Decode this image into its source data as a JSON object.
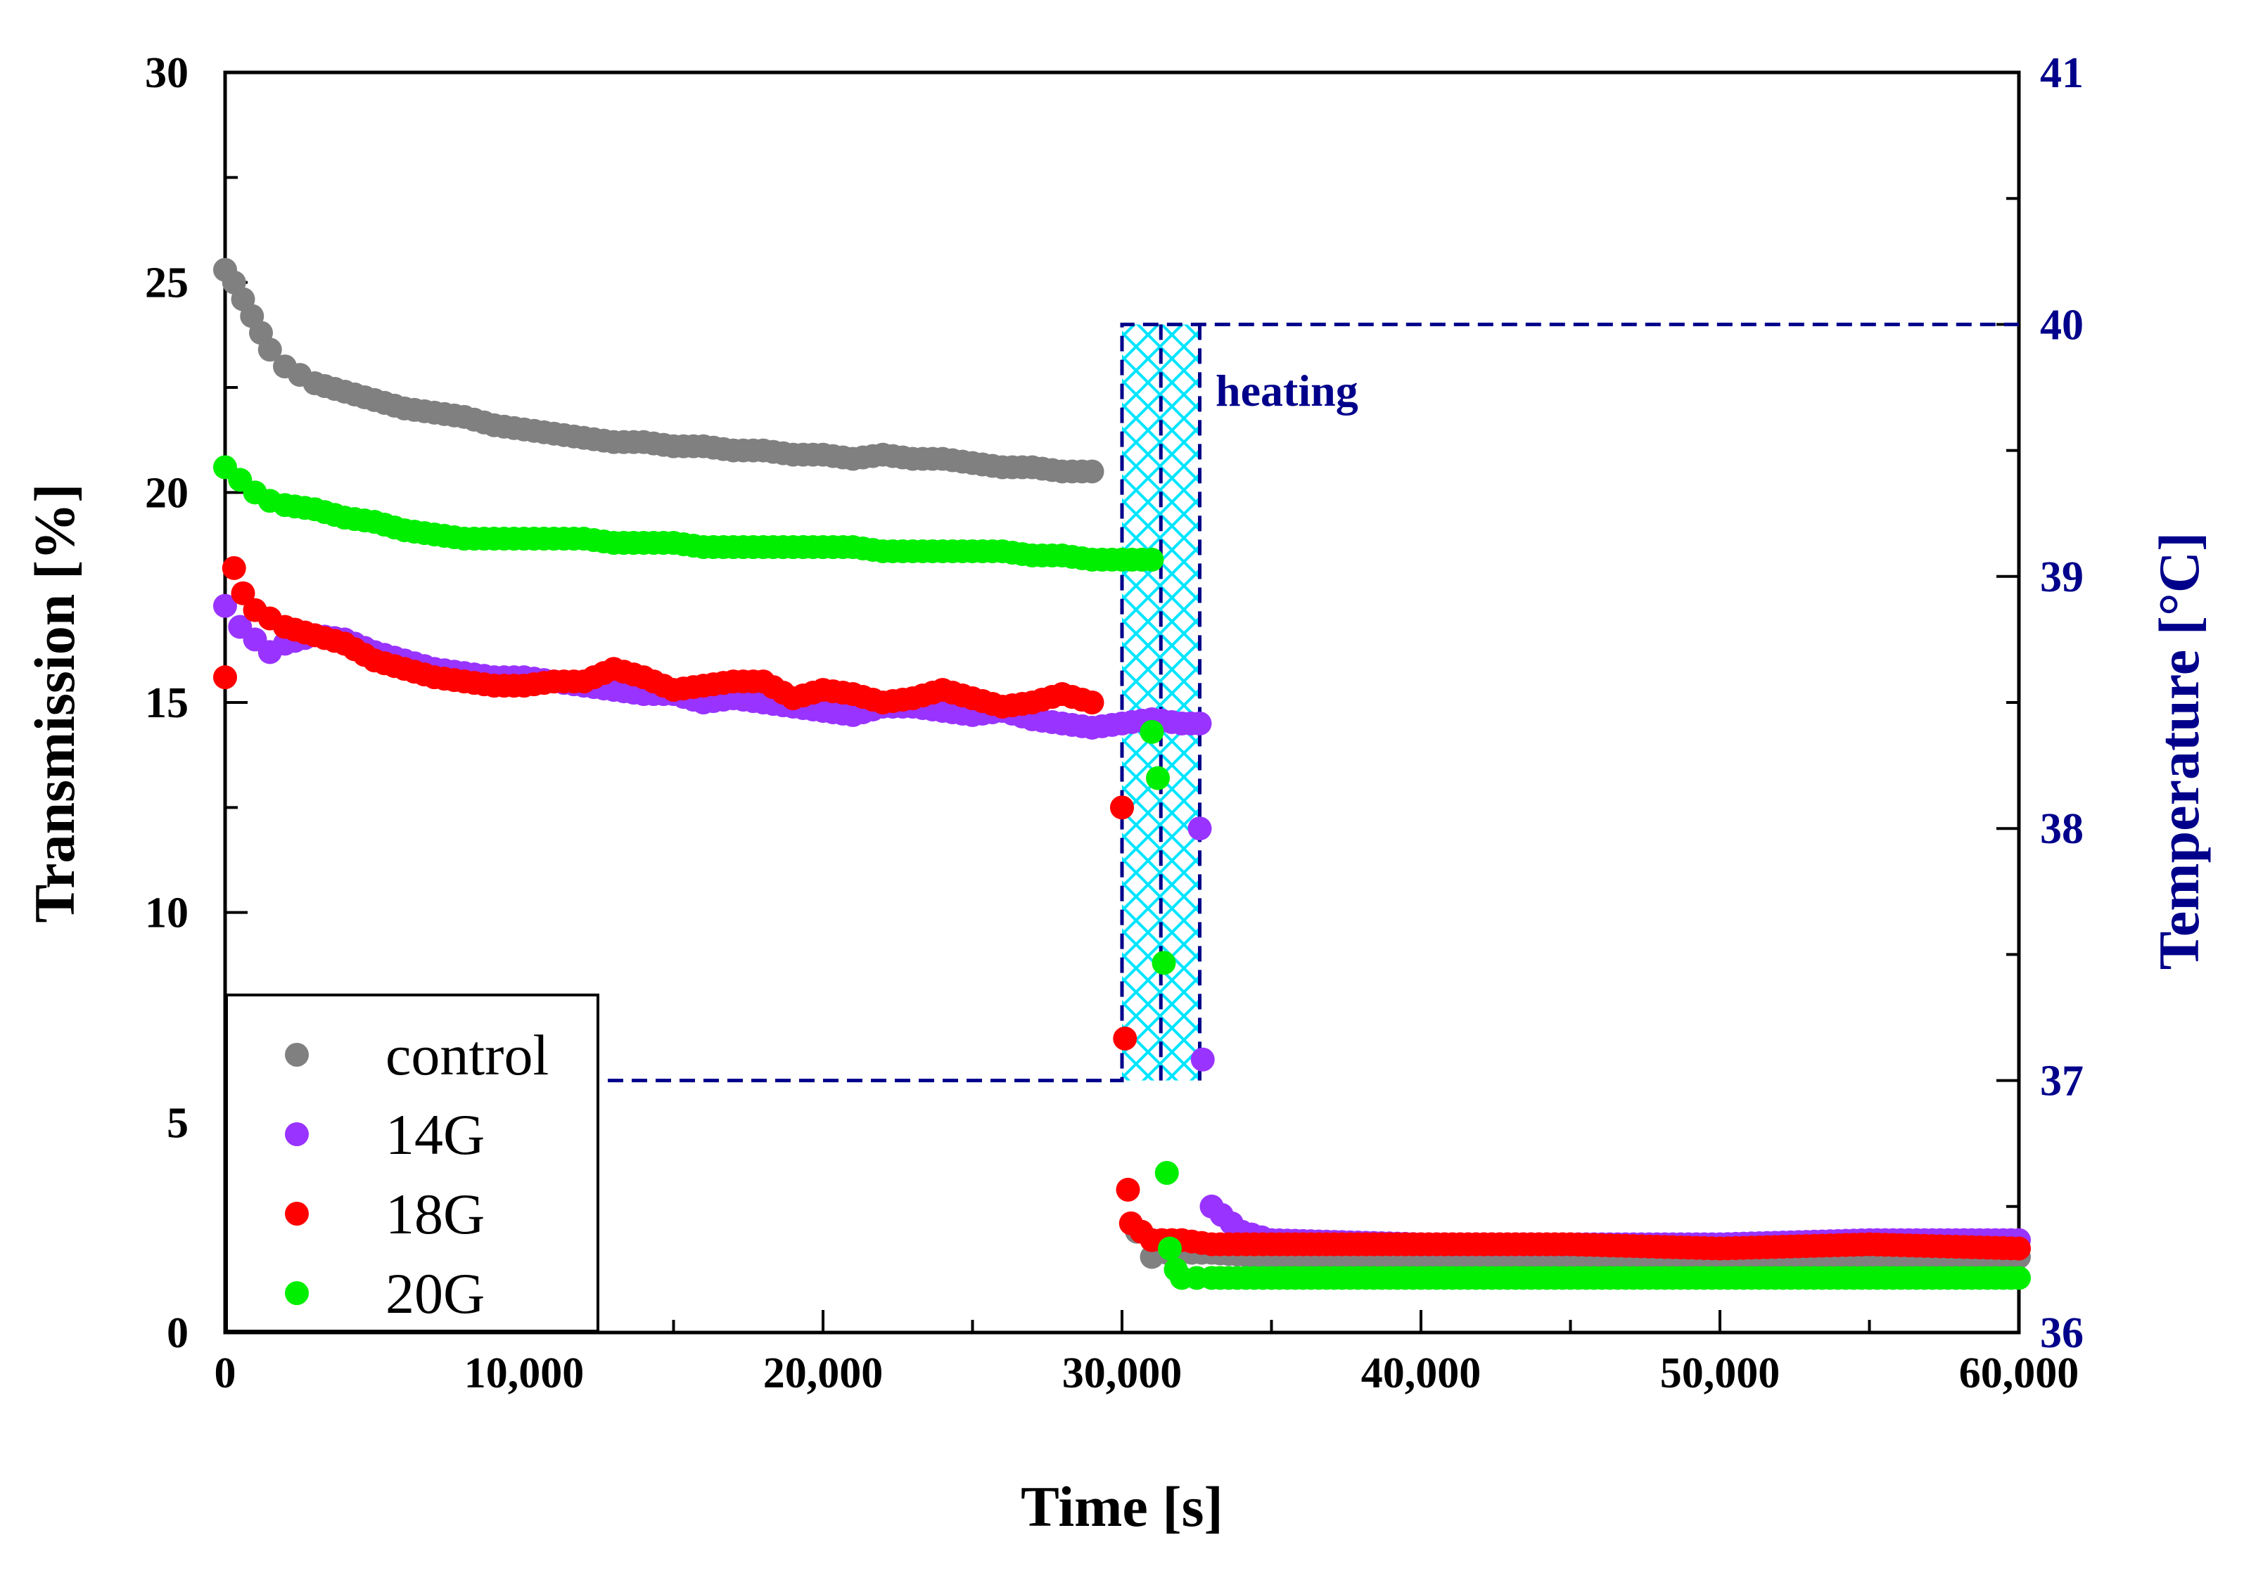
{
  "chart_data": {
    "type": "scatter",
    "title": "",
    "xlabel": "Time [s]",
    "ylabel": "Transmission [%]",
    "y2label": "Temperature [°C]",
    "xlim": [
      0,
      60000
    ],
    "ylim": [
      0,
      30
    ],
    "y2lim": [
      36,
      41
    ],
    "grid": false,
    "legend_position": "bottom-left",
    "x_ticks": [
      "0",
      "10,000",
      "20,000",
      "30,000",
      "40,000",
      "50,000",
      "60,000"
    ],
    "x_tick_values": [
      0,
      10000,
      20000,
      30000,
      40000,
      50000,
      60000
    ],
    "y_ticks": [
      "0",
      "5",
      "10",
      "15",
      "20",
      "25",
      "30"
    ],
    "y_tick_values": [
      0,
      5,
      10,
      15,
      20,
      25,
      30
    ],
    "y2_ticks": [
      "36",
      "37",
      "38",
      "39",
      "40",
      "41"
    ],
    "y2_tick_values": [
      36,
      37,
      38,
      39,
      40,
      41
    ],
    "annotation": "heating",
    "heating_band": {
      "x_start": 30000,
      "x_end": 32600,
      "x_mid": 31300,
      "temp_low": 37,
      "temp_high": 40
    },
    "temperature_profile": {
      "name": "Temperature",
      "x": [
        0,
        30000,
        30000,
        32600,
        32600,
        60000
      ],
      "y": [
        37,
        37,
        40,
        40,
        40,
        40
      ]
    },
    "series": [
      {
        "name": "control",
        "color": "#808080",
        "x": [
          0,
          300,
          600,
          900,
          1200,
          1500,
          2000,
          2500,
          3000,
          4000,
          5000,
          6000,
          7000,
          8000,
          9000,
          10000,
          11000,
          12000,
          13000,
          14000,
          15000,
          16000,
          17000,
          18000,
          19000,
          20000,
          21000,
          22000,
          23000,
          24000,
          25000,
          26000,
          27000,
          28000,
          29000,
          30000,
          30500,
          31000,
          31500,
          32000,
          33000,
          35000,
          40000,
          45000,
          50000,
          55000,
          60000
        ],
        "y": [
          25.3,
          25.0,
          24.6,
          24.2,
          23.8,
          23.4,
          23.0,
          22.8,
          22.6,
          22.4,
          22.2,
          22.0,
          21.9,
          21.8,
          21.6,
          21.5,
          21.4,
          21.3,
          21.2,
          21.2,
          21.1,
          21.1,
          21.0,
          21.0,
          20.9,
          20.9,
          20.8,
          20.9,
          20.8,
          20.8,
          20.7,
          20.6,
          20.6,
          20.5,
          20.5,
          12.5,
          2.4,
          1.8,
          1.9,
          1.9,
          1.9,
          1.8,
          1.8,
          1.8,
          1.8,
          1.8,
          1.8
        ]
      },
      {
        "name": "14G",
        "color": "#9933ff",
        "x": [
          0,
          500,
          1000,
          1500,
          2000,
          3000,
          4000,
          5000,
          6000,
          7000,
          8000,
          9000,
          10000,
          11000,
          12000,
          13000,
          14000,
          15000,
          16000,
          17000,
          18000,
          19000,
          20000,
          21000,
          22000,
          23000,
          24000,
          25000,
          26000,
          27000,
          28000,
          29000,
          30000,
          31000,
          32000,
          32600,
          32600,
          32700,
          33000,
          34000,
          35000,
          40000,
          45000,
          50000,
          55000,
          60000
        ],
        "y": [
          17.3,
          16.8,
          16.5,
          16.2,
          16.4,
          16.6,
          16.5,
          16.2,
          16.0,
          15.8,
          15.7,
          15.6,
          15.6,
          15.5,
          15.4,
          15.3,
          15.2,
          15.2,
          15.0,
          15.1,
          15.0,
          14.9,
          14.8,
          14.7,
          14.9,
          14.9,
          14.8,
          14.7,
          14.8,
          14.6,
          14.5,
          14.4,
          14.5,
          14.6,
          14.5,
          14.5,
          12.0,
          6.5,
          3.0,
          2.4,
          2.2,
          2.1,
          2.1,
          2.1,
          2.2,
          2.2
        ]
      },
      {
        "name": "18G",
        "color": "#ff0000",
        "x": [
          0,
          300,
          600,
          1000,
          1500,
          2000,
          3000,
          4000,
          5000,
          6000,
          7000,
          8000,
          9000,
          10000,
          11000,
          12000,
          13000,
          14000,
          15000,
          16000,
          17000,
          18000,
          19000,
          20000,
          21000,
          22000,
          23000,
          24000,
          25000,
          26000,
          27000,
          28000,
          29000,
          30000,
          30100,
          30200,
          30300,
          31000,
          32000,
          33000,
          35000,
          40000,
          45000,
          50000,
          55000,
          60000
        ],
        "y": [
          15.6,
          18.2,
          17.6,
          17.2,
          17.0,
          16.8,
          16.6,
          16.4,
          16.0,
          15.8,
          15.6,
          15.5,
          15.4,
          15.4,
          15.5,
          15.5,
          15.8,
          15.6,
          15.3,
          15.4,
          15.5,
          15.5,
          15.1,
          15.3,
          15.2,
          15.0,
          15.1,
          15.3,
          15.1,
          14.9,
          15.0,
          15.2,
          15.0,
          12.5,
          7.0,
          3.4,
          2.6,
          2.2,
          2.2,
          2.1,
          2.1,
          2.1,
          2.1,
          2.0,
          2.1,
          2.0
        ]
      },
      {
        "name": "20G",
        "color": "#00ee00",
        "x": [
          0,
          500,
          1000,
          1500,
          2000,
          3000,
          4000,
          5000,
          6000,
          7000,
          8000,
          9000,
          10000,
          11000,
          12000,
          13000,
          14000,
          15000,
          16000,
          17000,
          18000,
          19000,
          20000,
          21000,
          22000,
          23000,
          24000,
          25000,
          26000,
          27000,
          28000,
          29000,
          30000,
          31000,
          31000,
          31200,
          31400,
          31500,
          31600,
          31800,
          32000,
          32500,
          33000,
          35000,
          40000,
          45000,
          50000,
          55000,
          60000
        ],
        "y": [
          20.6,
          20.3,
          20.0,
          19.8,
          19.7,
          19.6,
          19.4,
          19.3,
          19.1,
          19.0,
          18.9,
          18.9,
          18.9,
          18.9,
          18.9,
          18.8,
          18.8,
          18.8,
          18.7,
          18.7,
          18.7,
          18.7,
          18.7,
          18.7,
          18.6,
          18.6,
          18.6,
          18.6,
          18.6,
          18.5,
          18.5,
          18.4,
          18.4,
          18.4,
          14.3,
          13.2,
          8.8,
          3.8,
          2.0,
          1.5,
          1.3,
          1.3,
          1.3,
          1.3,
          1.3,
          1.3,
          1.3,
          1.3,
          1.3
        ]
      }
    ]
  }
}
